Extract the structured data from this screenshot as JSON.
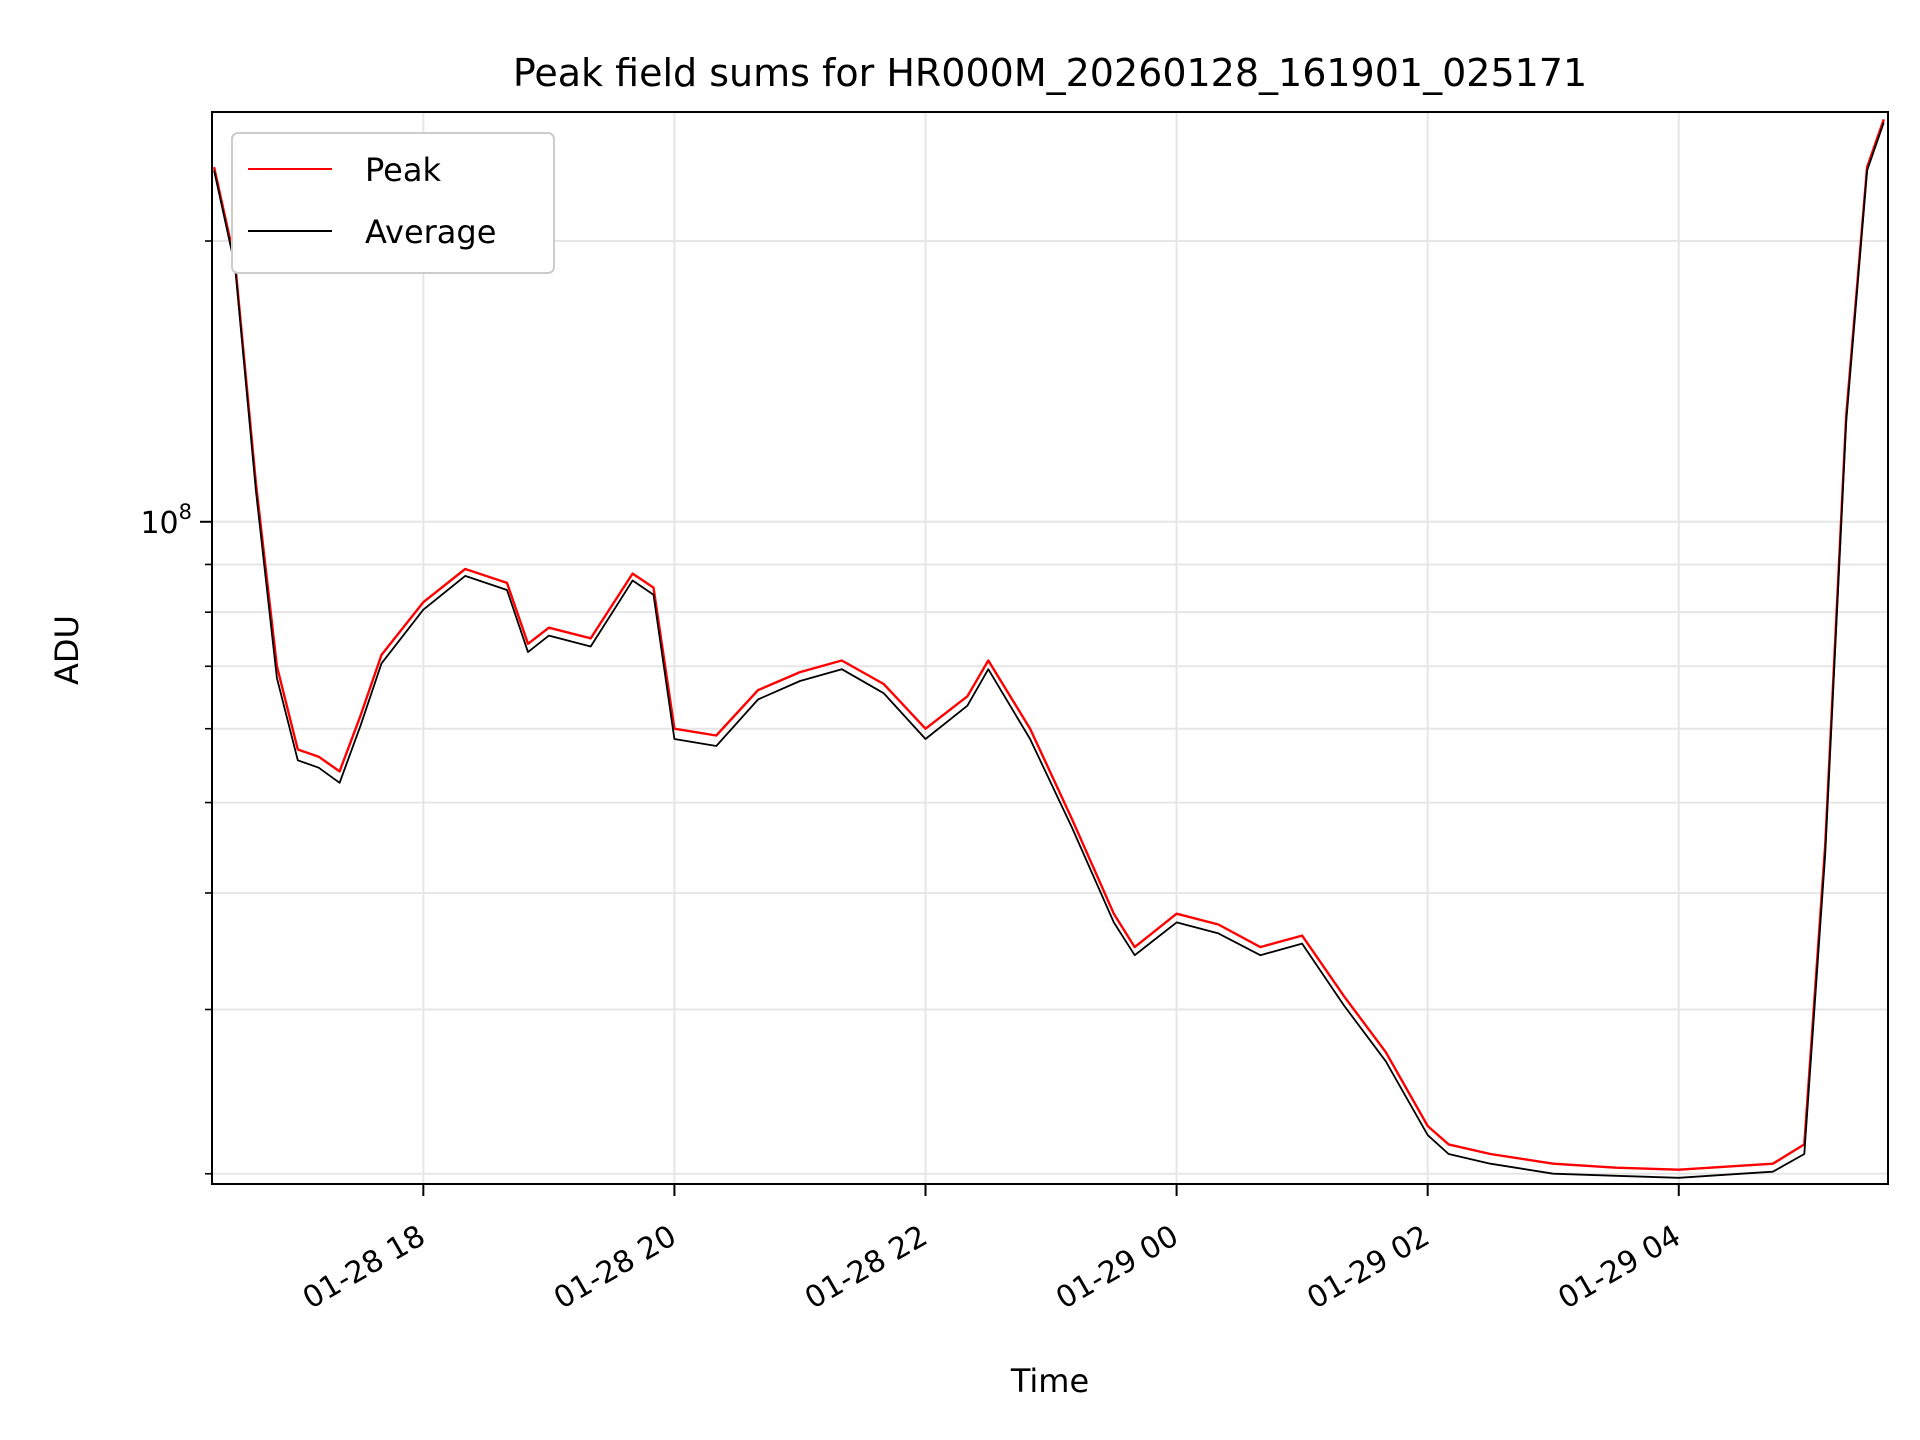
{
  "chart_data": {
    "type": "line",
    "title": "Peak field sums for HR000M_20260128_161901_025171",
    "xlabel": "Time",
    "ylabel": "ADU",
    "yscale": "log",
    "grid": true,
    "legend_position": "top-left",
    "x_tick_labels": [
      "01-28 18",
      "01-28 20",
      "01-28 22",
      "01-29 00",
      "01-29 02",
      "01-29 04"
    ],
    "x_ticks": [
      "2026-01-28 18:00",
      "2026-01-28 20:00",
      "2026-01-28 22:00",
      "2026-01-29 00:00",
      "2026-01-29 02:00",
      "2026-01-29 04:00"
    ],
    "xlim": [
      "2026-01-28 16:19",
      "2026-01-29 05:40"
    ],
    "y_tick_labels": [
      {
        "base": "10",
        "exp": "8"
      }
    ],
    "y_major_ticks": [
      100000000
    ],
    "y_minor_ticks": [
      20000000,
      30000000,
      40000000,
      50000000,
      60000000,
      70000000,
      80000000,
      90000000,
      200000000
    ],
    "ylim": [
      19500000,
      275000000
    ],
    "x": [
      "2026-01-28 16:20",
      "2026-01-28 16:30",
      "2026-01-28 16:40",
      "2026-01-28 16:50",
      "2026-01-28 17:00",
      "2026-01-28 17:10",
      "2026-01-28 17:20",
      "2026-01-28 17:30",
      "2026-01-28 17:40",
      "2026-01-28 18:00",
      "2026-01-28 18:20",
      "2026-01-28 18:40",
      "2026-01-28 18:50",
      "2026-01-28 19:00",
      "2026-01-28 19:20",
      "2026-01-28 19:40",
      "2026-01-28 19:50",
      "2026-01-28 20:00",
      "2026-01-28 20:20",
      "2026-01-28 20:40",
      "2026-01-28 21:00",
      "2026-01-28 21:20",
      "2026-01-28 21:40",
      "2026-01-28 22:00",
      "2026-01-28 22:20",
      "2026-01-28 22:30",
      "2026-01-28 22:50",
      "2026-01-28 23:10",
      "2026-01-28 23:30",
      "2026-01-28 23:40",
      "2026-01-29 00:00",
      "2026-01-29 00:20",
      "2026-01-29 00:40",
      "2026-01-29 01:00",
      "2026-01-29 01:20",
      "2026-01-29 01:40",
      "2026-01-29 02:00",
      "2026-01-29 02:10",
      "2026-01-29 02:30",
      "2026-01-29 03:00",
      "2026-01-29 03:30",
      "2026-01-29 04:00",
      "2026-01-29 04:30",
      "2026-01-29 04:45",
      "2026-01-29 05:00",
      "2026-01-29 05:10",
      "2026-01-29 05:20",
      "2026-01-29 05:30",
      "2026-01-29 05:38"
    ],
    "series": [
      {
        "name": "Peak",
        "color": "#ff0000",
        "values": [
          240000000,
          190000000,
          110000000,
          70000000,
          57000000,
          56000000,
          54000000,
          62000000,
          72000000,
          82000000,
          89000000,
          86000000,
          74000000,
          77000000,
          75000000,
          88000000,
          85000000,
          60000000,
          59000000,
          66000000,
          69000000,
          71000000,
          67000000,
          60000000,
          65000000,
          71000000,
          60000000,
          48000000,
          38000000,
          35000000,
          38000000,
          37000000,
          35000000,
          36000000,
          31000000,
          27000000,
          22500000,
          21500000,
          21000000,
          20500000,
          20300000,
          20200000,
          20400000,
          20500000,
          21500000,
          45000000,
          130000000,
          240000000,
          270000000
        ]
      },
      {
        "name": "Average",
        "color": "#000000",
        "values": [
          238000000,
          188000000,
          108000000,
          68000000,
          55500000,
          54500000,
          52500000,
          60500000,
          70500000,
          80500000,
          87500000,
          84500000,
          72500000,
          75500000,
          73500000,
          86500000,
          83500000,
          58500000,
          57500000,
          64500000,
          67500000,
          69500000,
          65500000,
          58500000,
          63500000,
          69500000,
          58500000,
          47000000,
          37200000,
          34300000,
          37200000,
          36200000,
          34300000,
          35300000,
          30300000,
          26400000,
          22000000,
          21000000,
          20500000,
          20000000,
          19900000,
          19800000,
          20000000,
          20100000,
          21000000,
          44000000,
          128000000,
          238000000,
          268000000
        ]
      }
    ]
  }
}
